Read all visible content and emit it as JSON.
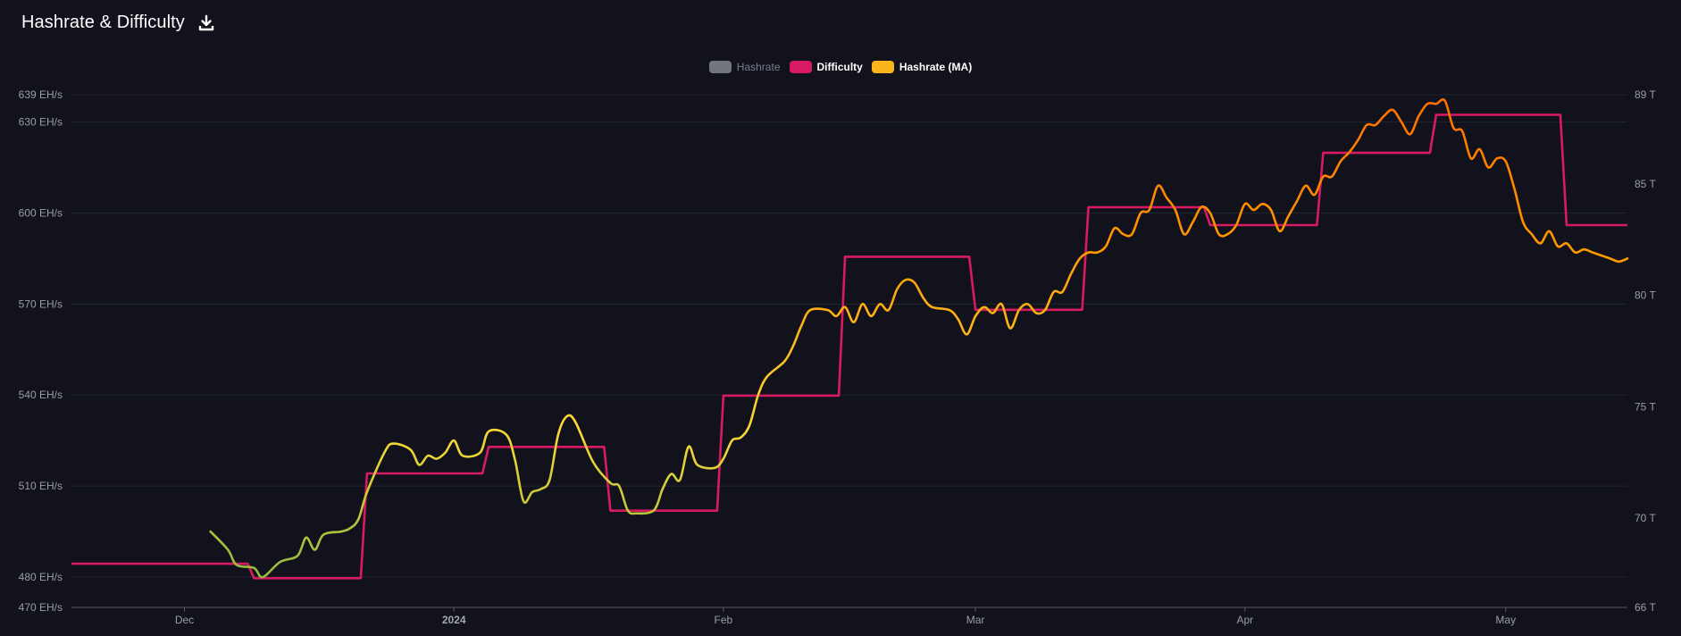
{
  "header": {
    "title": "Hashrate & Difficulty",
    "download_icon": "download-icon"
  },
  "colors": {
    "background": "#11121c",
    "hashrate": "#74767f",
    "difficulty": "#d81b60",
    "hashrate_ma_legend": "#f9b51a",
    "hashrate_ma_gradient": [
      "#7cb342",
      "#fdd835",
      "#ff9800",
      "#ff6d00"
    ],
    "grid": "#22242f",
    "axis_line": "#5a5c66"
  },
  "chart_data": {
    "type": "line",
    "title": "Hashrate & Difficulty",
    "legend": {
      "position": "top-center",
      "items": [
        {
          "name": "Hashrate",
          "color": "#74767f",
          "visible": false
        },
        {
          "name": "Difficulty",
          "color": "#d81b60",
          "visible": true
        },
        {
          "name": "Hashrate (MA)",
          "color": "#f9b51a",
          "visible": true
        }
      ]
    },
    "x_axis": {
      "type": "date",
      "range": [
        "2023-11-18",
        "2024-05-15"
      ],
      "ticks": [
        {
          "label": "Dec",
          "date": "2023-12-01",
          "bold": false
        },
        {
          "label": "2024",
          "date": "2024-01-01",
          "bold": true
        },
        {
          "label": "Feb",
          "date": "2024-02-01",
          "bold": false
        },
        {
          "label": "Mar",
          "date": "2024-03-01",
          "bold": false
        },
        {
          "label": "Apr",
          "date": "2024-04-01",
          "bold": false
        },
        {
          "label": "May",
          "date": "2024-05-01",
          "bold": false
        }
      ]
    },
    "y_left": {
      "unit": "EH/s",
      "range": [
        470,
        639
      ],
      "ticks": [
        "470 EH/s",
        "480 EH/s",
        "510 EH/s",
        "540 EH/s",
        "570 EH/s",
        "600 EH/s",
        "630 EH/s",
        "639 EH/s"
      ],
      "tick_values": [
        470,
        480,
        510,
        540,
        570,
        600,
        630,
        639
      ]
    },
    "y_right": {
      "unit": "T",
      "range": [
        66,
        89
      ],
      "ticks": [
        "66 T",
        "70 T",
        "75 T",
        "80 T",
        "85 T",
        "89 T"
      ],
      "tick_values": [
        66,
        70,
        75,
        80,
        85,
        89
      ]
    },
    "grid": true,
    "series": [
      {
        "name": "Difficulty",
        "axis": "right",
        "step": true,
        "points": [
          [
            "2023-11-18",
            67.96
          ],
          [
            "2023-12-09",
            67.31
          ],
          [
            "2023-12-22",
            72.01
          ],
          [
            "2024-01-05",
            73.2
          ],
          [
            "2024-01-19",
            70.34
          ],
          [
            "2024-02-01",
            75.5
          ],
          [
            "2024-02-15",
            81.73
          ],
          [
            "2024-03-01",
            79.35
          ],
          [
            "2024-03-14",
            83.95
          ],
          [
            "2024-03-28",
            83.15
          ],
          [
            "2024-04-10",
            86.39
          ],
          [
            "2024-04-23",
            88.1
          ],
          [
            "2024-05-08",
            83.15
          ],
          [
            "2024-05-15",
            83.15
          ]
        ]
      },
      {
        "name": "Hashrate (MA)",
        "axis": "left",
        "points": [
          [
            "2023-12-04",
            495
          ],
          [
            "2023-12-06",
            489
          ],
          [
            "2023-12-07",
            484
          ],
          [
            "2023-12-09",
            483
          ],
          [
            "2023-12-10",
            480
          ],
          [
            "2023-12-12",
            485
          ],
          [
            "2023-12-14",
            487
          ],
          [
            "2023-12-15",
            493
          ],
          [
            "2023-12-16",
            489
          ],
          [
            "2023-12-17",
            494
          ],
          [
            "2023-12-19",
            495
          ],
          [
            "2023-12-20",
            496
          ],
          [
            "2023-12-21",
            499
          ],
          [
            "2023-12-22",
            508
          ],
          [
            "2023-12-24",
            521
          ],
          [
            "2023-12-25",
            524
          ],
          [
            "2023-12-27",
            522
          ],
          [
            "2023-12-28",
            517
          ],
          [
            "2023-12-29",
            520
          ],
          [
            "2023-12-30",
            519
          ],
          [
            "2023-12-31",
            521
          ],
          [
            "2024-01-01",
            525
          ],
          [
            "2024-01-02",
            520
          ],
          [
            "2024-01-04",
            521
          ],
          [
            "2024-01-05",
            528
          ],
          [
            "2024-01-07",
            527
          ],
          [
            "2024-01-08",
            519
          ],
          [
            "2024-01-09",
            505
          ],
          [
            "2024-01-10",
            508
          ],
          [
            "2024-01-11",
            509
          ],
          [
            "2024-01-12",
            512
          ],
          [
            "2024-01-13",
            527
          ],
          [
            "2024-01-14",
            533
          ],
          [
            "2024-01-15",
            531
          ],
          [
            "2024-01-17",
            518
          ],
          [
            "2024-01-19",
            511
          ],
          [
            "2024-01-20",
            510
          ],
          [
            "2024-01-21",
            502
          ],
          [
            "2024-01-22",
            501
          ],
          [
            "2024-01-24",
            502
          ],
          [
            "2024-01-25",
            509
          ],
          [
            "2024-01-26",
            514
          ],
          [
            "2024-01-27",
            512
          ],
          [
            "2024-01-28",
            523
          ],
          [
            "2024-01-29",
            517
          ],
          [
            "2024-01-31",
            516
          ],
          [
            "2024-02-01",
            519
          ],
          [
            "2024-02-02",
            525
          ],
          [
            "2024-02-03",
            526
          ],
          [
            "2024-02-04",
            530
          ],
          [
            "2024-02-05",
            540
          ],
          [
            "2024-02-06",
            546
          ],
          [
            "2024-02-08",
            551
          ],
          [
            "2024-02-09",
            556
          ],
          [
            "2024-02-10",
            563
          ],
          [
            "2024-02-11",
            568
          ],
          [
            "2024-02-13",
            568
          ],
          [
            "2024-02-14",
            566
          ],
          [
            "2024-02-15",
            569
          ],
          [
            "2024-02-16",
            564
          ],
          [
            "2024-02-17",
            570
          ],
          [
            "2024-02-18",
            566
          ],
          [
            "2024-02-19",
            570
          ],
          [
            "2024-02-20",
            568
          ],
          [
            "2024-02-21",
            575
          ],
          [
            "2024-02-22",
            578
          ],
          [
            "2024-02-23",
            577
          ],
          [
            "2024-02-24",
            572
          ],
          [
            "2024-02-25",
            569
          ],
          [
            "2024-02-27",
            568
          ],
          [
            "2024-02-28",
            565
          ],
          [
            "2024-02-29",
            560
          ],
          [
            "2024-03-01",
            566
          ],
          [
            "2024-03-02",
            569
          ],
          [
            "2024-03-03",
            567
          ],
          [
            "2024-03-04",
            570
          ],
          [
            "2024-03-05",
            562
          ],
          [
            "2024-03-06",
            568
          ],
          [
            "2024-03-07",
            570
          ],
          [
            "2024-03-08",
            567
          ],
          [
            "2024-03-09",
            568
          ],
          [
            "2024-03-10",
            574
          ],
          [
            "2024-03-11",
            574
          ],
          [
            "2024-03-12",
            580
          ],
          [
            "2024-03-13",
            585
          ],
          [
            "2024-03-14",
            587
          ],
          [
            "2024-03-15",
            587
          ],
          [
            "2024-03-16",
            589
          ],
          [
            "2024-03-17",
            595
          ],
          [
            "2024-03-18",
            593
          ],
          [
            "2024-03-19",
            593
          ],
          [
            "2024-03-20",
            600
          ],
          [
            "2024-03-21",
            601
          ],
          [
            "2024-03-22",
            609
          ],
          [
            "2024-03-23",
            605
          ],
          [
            "2024-03-24",
            601
          ],
          [
            "2024-03-25",
            593
          ],
          [
            "2024-03-26",
            597
          ],
          [
            "2024-03-27",
            602
          ],
          [
            "2024-03-28",
            600
          ],
          [
            "2024-03-29",
            593
          ],
          [
            "2024-03-30",
            593
          ],
          [
            "2024-03-31",
            596
          ],
          [
            "2024-04-01",
            603
          ],
          [
            "2024-04-02",
            601
          ],
          [
            "2024-04-03",
            603
          ],
          [
            "2024-04-04",
            601
          ],
          [
            "2024-04-05",
            594
          ],
          [
            "2024-04-06",
            599
          ],
          [
            "2024-04-07",
            604
          ],
          [
            "2024-04-08",
            609
          ],
          [
            "2024-04-09",
            606
          ],
          [
            "2024-04-10",
            612
          ],
          [
            "2024-04-11",
            612
          ],
          [
            "2024-04-12",
            617
          ],
          [
            "2024-04-13",
            620
          ],
          [
            "2024-04-14",
            624
          ],
          [
            "2024-04-15",
            629
          ],
          [
            "2024-04-16",
            629
          ],
          [
            "2024-04-17",
            632
          ],
          [
            "2024-04-18",
            634
          ],
          [
            "2024-04-19",
            630
          ],
          [
            "2024-04-20",
            626
          ],
          [
            "2024-04-21",
            632
          ],
          [
            "2024-04-22",
            636
          ],
          [
            "2024-04-23",
            636
          ],
          [
            "2024-04-24",
            637
          ],
          [
            "2024-04-25",
            628
          ],
          [
            "2024-04-26",
            627
          ],
          [
            "2024-04-27",
            618
          ],
          [
            "2024-04-28",
            621
          ],
          [
            "2024-04-29",
            615
          ],
          [
            "2024-04-30",
            618
          ],
          [
            "2024-05-01",
            617
          ],
          [
            "2024-05-02",
            608
          ],
          [
            "2024-05-03",
            597
          ],
          [
            "2024-05-04",
            593
          ],
          [
            "2024-05-05",
            590
          ],
          [
            "2024-05-06",
            594
          ],
          [
            "2024-05-07",
            589
          ],
          [
            "2024-05-08",
            590
          ],
          [
            "2024-05-09",
            587
          ],
          [
            "2024-05-10",
            588
          ],
          [
            "2024-05-11",
            587
          ],
          [
            "2024-05-12",
            586
          ],
          [
            "2024-05-13",
            585
          ],
          [
            "2024-05-14",
            584
          ],
          [
            "2024-05-15",
            585
          ]
        ]
      }
    ]
  }
}
